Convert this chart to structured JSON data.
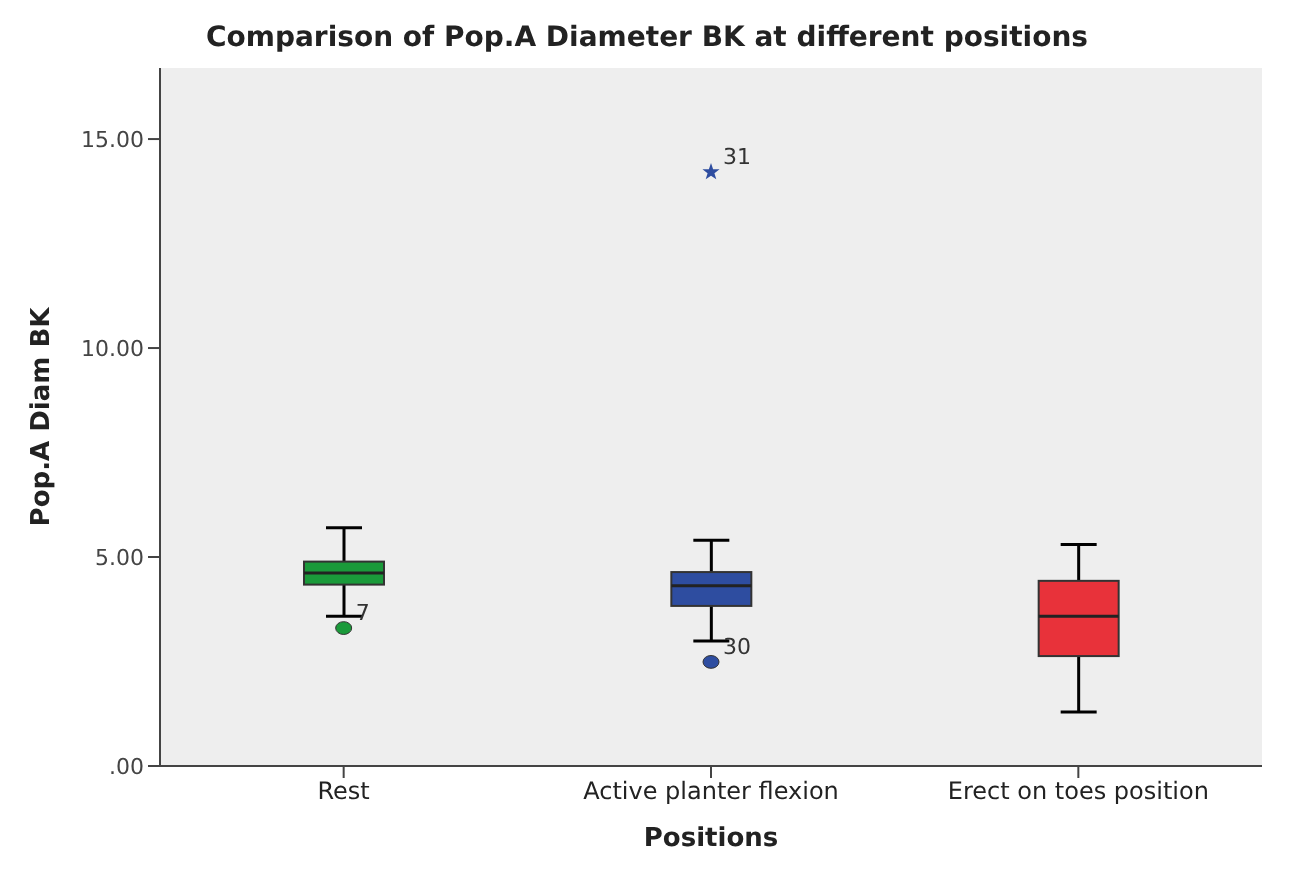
{
  "chart_data": {
    "type": "box",
    "title": "Comparison of Pop.A Diameter BK at different positions",
    "xlabel": "Positions",
    "ylabel": "Pop.A Diam BK",
    "categories": [
      "Rest",
      "Active planter flexion",
      "Erect on toes position"
    ],
    "colors": [
      "#1a9a3a",
      "#2e4da0",
      "#e8323a"
    ],
    "boxes": [
      {
        "low": 3.58,
        "q1": 4.34,
        "median": 4.62,
        "q3": 4.89,
        "high": 5.7,
        "outliers": [
          3.3
        ]
      },
      {
        "low": 2.99,
        "q1": 3.83,
        "median": 4.31,
        "q3": 4.64,
        "high": 5.4,
        "outliers": [
          2.49,
          14.21
        ]
      },
      {
        "low": 1.29,
        "q1": 2.63,
        "median": 3.58,
        "q3": 4.43,
        "high": 5.3
      }
    ],
    "ylim": [
      0,
      16.7
    ],
    "yticks": [
      {
        "value": 0,
        "label": ".00"
      },
      {
        "value": 5,
        "label": "5.00"
      },
      {
        "value": 10,
        "label": "10.00"
      },
      {
        "value": 15,
        "label": "15.00"
      }
    ],
    "annotations": [
      "7",
      "30",
      "31"
    ]
  }
}
